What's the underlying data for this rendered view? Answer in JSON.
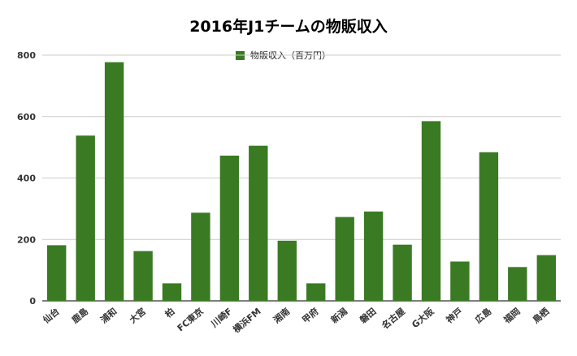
{
  "chart_data": {
    "type": "bar",
    "title": "2016年J1チームの物販収入",
    "xlabel": "",
    "ylabel": "",
    "ylim": [
      0,
      800
    ],
    "yticks": [
      0,
      200,
      400,
      600,
      800
    ],
    "grid": true,
    "legend_position": "top",
    "bar_color": "#3a7a23",
    "series": [
      {
        "name": "物販収入（百万円）",
        "values": [
          181,
          538,
          777,
          162,
          57,
          287,
          473,
          505,
          196,
          57,
          273,
          291,
          183,
          585,
          128,
          484,
          110,
          149
        ]
      }
    ],
    "categories": [
      "仙台",
      "鹿島",
      "浦和",
      "大宮",
      "柏",
      "FC東京",
      "川崎F",
      "横浜FM",
      "湘南",
      "甲府",
      "新潟",
      "磐田",
      "名古屋",
      "G大阪",
      "神戸",
      "広島",
      "福岡",
      "鳥栖"
    ]
  }
}
